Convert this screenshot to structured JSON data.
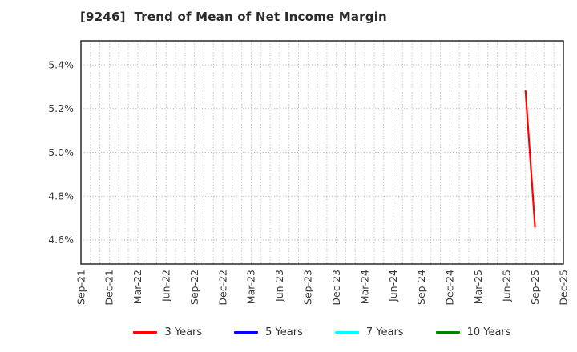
{
  "page": {
    "background": "#ffffff"
  },
  "chart_data": {
    "type": "line",
    "title": "[9246]  Trend of Mean of Net Income Margin",
    "xlabel": "",
    "ylabel": "",
    "x_tick_labels": [
      "Sep-21",
      "Dec-21",
      "Mar-22",
      "Jun-22",
      "Sep-22",
      "Dec-22",
      "Mar-23",
      "Jun-23",
      "Sep-23",
      "Dec-23",
      "Mar-24",
      "Jun-24",
      "Sep-24",
      "Dec-24",
      "Mar-25",
      "Jun-25",
      "Sep-25",
      "Dec-25"
    ],
    "months_per_tick": 3,
    "x_month_span": 51,
    "ylim": [
      4.49,
      5.51
    ],
    "yticks": [
      "4.6%",
      "4.8%",
      "5.0%",
      "5.2%",
      "5.4%"
    ],
    "grid": {
      "vertical": "monthly-dotted",
      "horizontal": "at-yticks-dotted",
      "color": "#ababab",
      "on": true
    },
    "axes_color": "#1a1a1a",
    "legend_position": "bottom-center",
    "series": [
      {
        "name": "3 Years",
        "color": "#ff0000",
        "points": [
          {
            "month": "Aug-25",
            "month_index": 47,
            "value": 5.28
          },
          {
            "month": "Sep-25",
            "month_index": 48,
            "value": 4.66
          }
        ]
      },
      {
        "name": "5 Years",
        "color": "#0000ff",
        "points": []
      },
      {
        "name": "7 Years",
        "color": "#00ffff",
        "points": []
      },
      {
        "name": "10 Years",
        "color": "#008000",
        "points": []
      }
    ]
  }
}
